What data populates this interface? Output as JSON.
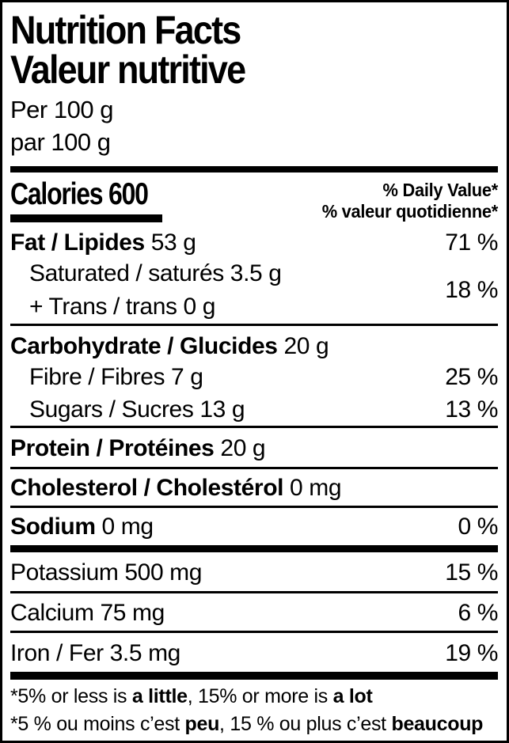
{
  "header": {
    "title_en": "Nutrition Facts",
    "title_fr": "Valeur nutritive",
    "serving_en": "Per 100 g",
    "serving_fr": "par 100 g"
  },
  "calories": {
    "text": "Calories 600",
    "dv_header_en": "% Daily Value*",
    "dv_header_fr": "% valeur quotidienne*"
  },
  "rows": {
    "fat": {
      "bold": "Fat / Lipides",
      "amount": "53 g",
      "dv": "71 %"
    },
    "saturated": {
      "line1": "Saturated / saturés 3.5 g",
      "line2": "+ Trans / trans 0 g",
      "dv": "18 %"
    },
    "carbohydrate": {
      "bold": "Carbohydrate / Glucides",
      "amount": "20 g"
    },
    "fibre": {
      "text": "Fibre / Fibres 7 g",
      "dv": "25 %"
    },
    "sugars": {
      "text": "Sugars / Sucres 13 g",
      "dv": "13 %"
    },
    "protein": {
      "bold": "Protein / Protéines",
      "amount": "20 g"
    },
    "cholesterol": {
      "bold": "Cholesterol / Cholestérol",
      "amount": "0 mg"
    },
    "sodium": {
      "bold": "Sodium",
      "amount": "0 mg",
      "dv": "0 %"
    },
    "potassium": {
      "text": "Potassium 500 mg",
      "dv": "15 %"
    },
    "calcium": {
      "text": "Calcium 75 mg",
      "dv": "6 %"
    },
    "iron": {
      "text": "Iron / Fer 3.5 mg",
      "dv": "19 %"
    }
  },
  "footnote": {
    "en": {
      "p1": "*5% or less is ",
      "b1": "a little",
      "p2": ", 15% or more is ",
      "b2": "a lot"
    },
    "fr": {
      "p1": "*5 % ou moins c’est ",
      "b1": "peu",
      "p2": ", 15 % ou plus c’est ",
      "b2": "beaucoup"
    }
  },
  "colors": {
    "text": "#000000",
    "background": "#ffffff",
    "divider": "#000000"
  }
}
